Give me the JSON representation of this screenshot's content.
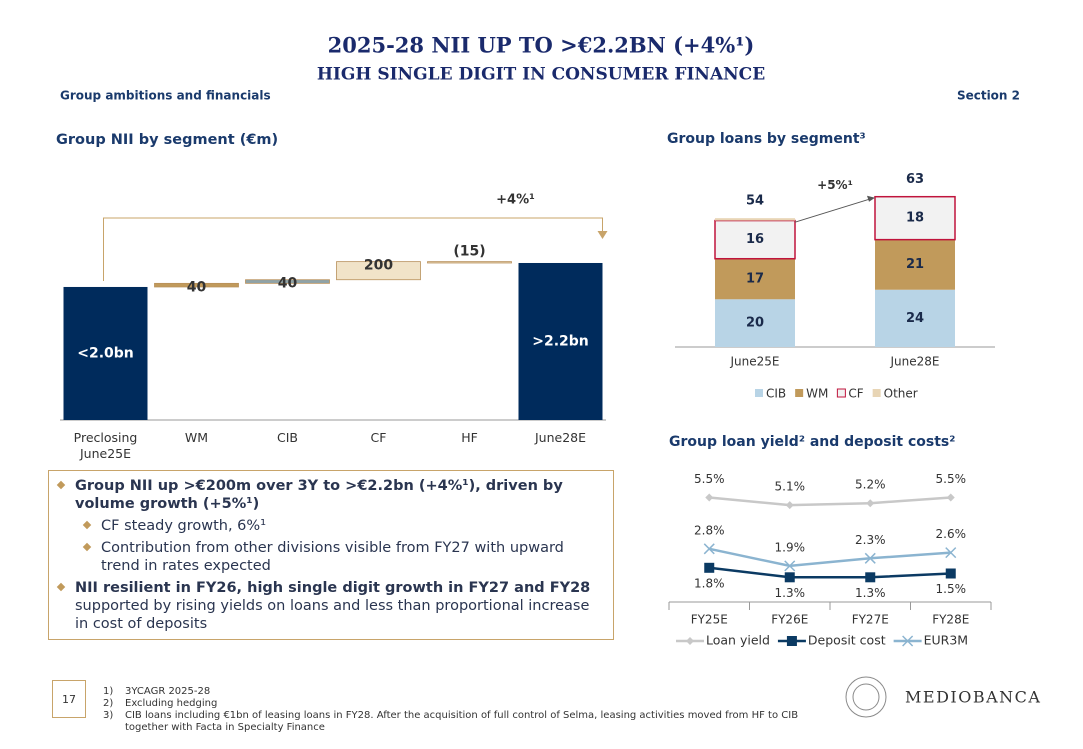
{
  "header": {
    "title": "2025-28 NII UP TO >€2.2BN (+4%¹)",
    "subtitle": "HIGH SINGLE DIGIT IN CONSUMER FINANCE",
    "section_left": "Group ambitions and financials",
    "section_right": "Section 2"
  },
  "chart_data": [
    {
      "type": "waterfall",
      "title": "Group NII by segment (€m)",
      "categories": [
        "Preclosing June25E",
        "WM",
        "CIB",
        "CF",
        "HF",
        "June28E"
      ],
      "values": [
        1950,
        40,
        40,
        200,
        -15,
        2215
      ],
      "value_labels": [
        "<2.0bn",
        "40",
        "40",
        "200",
        "(15)",
        ">2.2bn"
      ],
      "measures": [
        "absolute",
        "relative",
        "relative",
        "relative",
        "relative",
        "total"
      ],
      "colors": [
        "#002b5c",
        "#c19a5b",
        "#8fa3a8",
        "#f1e3c8",
        "#e8d5b5",
        "#002b5c"
      ],
      "ylim": [
        480,
        2690
      ],
      "annotation": "+4%¹"
    },
    {
      "type": "stacked_bar",
      "title": "Group loans by segment³",
      "categories": [
        "June25E",
        "June28E"
      ],
      "series": [
        {
          "name": "CIB",
          "color": "#b8d4e6",
          "values": [
            20,
            24
          ]
        },
        {
          "name": "WM",
          "color": "#c19a5b",
          "values": [
            17,
            21
          ]
        },
        {
          "name": "CF",
          "color": "#f2f2f2",
          "border": "#c0143c",
          "values": [
            16,
            18
          ]
        },
        {
          "name": "Other",
          "color": "#e8d5b5",
          "values": [
            1,
            0
          ],
          "show_labels": false
        }
      ],
      "totals": [
        54,
        63
      ],
      "ylim": [
        0,
        70
      ],
      "annotation": "+5%¹",
      "legend": "bottom"
    },
    {
      "type": "line",
      "title": "Group loan yield² and deposit costs²",
      "categories": [
        "FY25E",
        "FY26E",
        "FY27E",
        "FY28E"
      ],
      "series": [
        {
          "name": "Loan yield",
          "color": "#c8c8c8",
          "marker": "diamond",
          "values": [
            5.5,
            5.1,
            5.2,
            5.5
          ],
          "value_labels": [
            "5.5%",
            "5.1%",
            "5.2%",
            "5.5%"
          ],
          "label_pos": "above"
        },
        {
          "name": "Deposit cost",
          "color": "#0b3a63",
          "marker": "square",
          "values": [
            1.8,
            1.3,
            1.3,
            1.5
          ],
          "value_labels": [
            "1.8%",
            "1.3%",
            "1.3%",
            "1.5%"
          ],
          "label_pos": "below"
        },
        {
          "name": "EUR3M",
          "color": "#8bb4d0",
          "marker": "x",
          "values": [
            2.8,
            1.9,
            2.3,
            2.6
          ],
          "value_labels": [
            "2.8%",
            "1.9%",
            "2.3%",
            "2.6%"
          ],
          "label_pos": "above"
        }
      ],
      "ylim": [
        0,
        6
      ],
      "legend": "bottom"
    }
  ],
  "commentary": {
    "bullet1": "Group NII up >€200m over 3Y to >€2.2bn (+4%¹), driven by volume growth (+5%¹)",
    "sub1": "CF steady growth, 6%¹",
    "sub2": "Contribution from other divisions visible from FY27 with upward trend in rates expected",
    "bullet2_bold": "NII resilient in FY26, high single digit growth in FY27 and FY28",
    "bullet2_rest": " supported by rising yields on loans and less than proportional increase in cost of deposits"
  },
  "footnotes": [
    {
      "marker": "1)",
      "text": "3YCAGR 2025-28"
    },
    {
      "marker": "2)",
      "text": "Excluding hedging"
    },
    {
      "marker": "3)",
      "text": "CIB loans including €1bn of leasing loans in FY28. After the acquisition of full control of Selma, leasing activities moved from HF to CIB together with Facta in Specialty Finance"
    }
  ],
  "page_number": "17",
  "logo": "MEDIOBANCA"
}
